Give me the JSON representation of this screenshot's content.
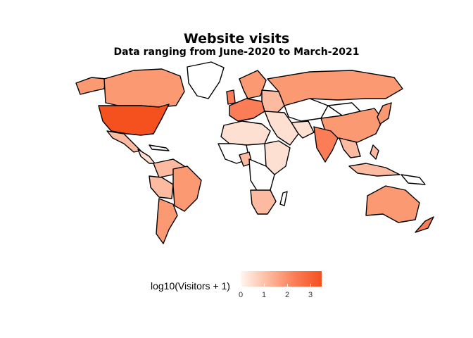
{
  "title": "Website visits",
  "subtitle": "Data ranging from June-2020 to March-2021",
  "legend": {
    "title": "log10(Visitors + 1)",
    "ticks": [
      "0",
      "1",
      "2",
      "3"
    ],
    "colors": [
      "#fff5f0",
      "#fcbba1",
      "#fb7d57",
      "#f4511e"
    ]
  },
  "colors": {
    "none": "#ffffff",
    "low": "#fee0d2",
    "mid": "#fcbba1",
    "midhigh": "#fb9a72",
    "high": "#fb7d57",
    "top": "#f4511e"
  }
}
